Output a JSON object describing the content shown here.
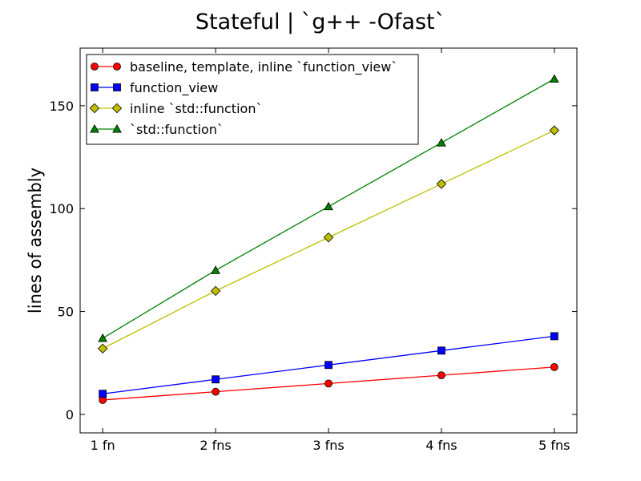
{
  "chart_data": {
    "type": "line",
    "title": "Stateful | `g++ -Ofast`",
    "xlabel": "",
    "ylabel": "lines of assembly",
    "categories": [
      "1 fn",
      "2 fns",
      "3 fns",
      "4 fns",
      "5 fns"
    ],
    "ylim": [
      -9,
      178
    ],
    "yticks": [
      0,
      50,
      100,
      150
    ],
    "grid": false,
    "legend_position": "top-left",
    "series": [
      {
        "name": "baseline, template, inline  `function_view`",
        "values": [
          7,
          11,
          15,
          19,
          23
        ],
        "color": "#ff0000",
        "marker": "circle"
      },
      {
        "name": "function_view",
        "values": [
          10,
          17,
          24,
          31,
          38
        ],
        "color": "#0000ff",
        "marker": "square"
      },
      {
        "name": "inline `std::function`",
        "values": [
          32,
          60,
          86,
          112,
          138
        ],
        "color": "#bfbf00",
        "marker": "diamond"
      },
      {
        "name": "`std::function`",
        "values": [
          37,
          70,
          101,
          132,
          163
        ],
        "color": "#008000",
        "marker": "triangle"
      }
    ]
  }
}
